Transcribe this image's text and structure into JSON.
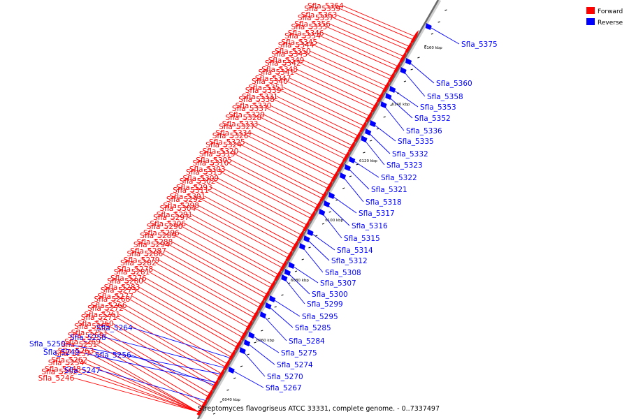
{
  "caption": "Streptomyces flavogriseus ATCC 33331, complete genome. - 0..7337497",
  "legend": [
    {
      "label": "Forward",
      "color": "#ff0000"
    },
    {
      "label": "Reverse",
      "color": "#0000ff"
    }
  ],
  "ticks": [
    "6040 kbp",
    "6060 kbp",
    "6080 kbp",
    "6100 kbp",
    "6120 kbp",
    "6140 kbp",
    "6160 kbp"
  ],
  "forward_labels": [
    "Sfla_5364",
    "Sfla_5359",
    "Sfla_5363",
    "Sfla_5357",
    "Sfla_5356",
    "Sfla_5355",
    "Sfla_5346",
    "Sfla_5354",
    "Sfla_5345",
    "Sfla_5344",
    "Sfla_5350",
    "Sfla_5343",
    "Sfla_5349",
    "Sfla_5342",
    "Sfla_5348",
    "Sfla_5341",
    "Sfla_5347",
    "Sfla_5340",
    "Sfla_5351",
    "Sfla_5339",
    "Sfla_5331",
    "Sfla_5338",
    "Sfla_5330",
    "Sfla_5337",
    "Sfla_5329",
    "Sfla_5328",
    "Sfla_5333",
    "Sfla_5327",
    "Sfla_5334",
    "Sfla_5326",
    "Sfla_5325",
    "Sfla_5324",
    "Sfla_5320",
    "Sfla_5319",
    "Sfla_5305",
    "Sfla_5310",
    "Sfla_5303",
    "Sfla_5313",
    "Sfla_5309",
    "Sfla_5302",
    "Sfla_5293",
    "Sfla_5311",
    "Sfla_5301",
    "Sfla_5292",
    "Sfla_5298",
    "Sfla_5304",
    "Sfla_5291",
    "Sfla_5297",
    "Sfla_5306",
    "Sfla_5290",
    "Sfla_5296",
    "Sfla_5289",
    "Sfla_5288",
    "Sfla_5294",
    "Sfla_5287",
    "Sfla_5286",
    "Sfla_5279",
    "Sfla_5282",
    "Sfla_5278",
    "Sfla_5281",
    "Sfla_5276",
    "Sfla_5280",
    "Sfla_5283",
    "Sfla_5273",
    "Sfla_5277",
    "Sfla_5268",
    "Sfla_5266",
    "Sfla_5272",
    "Sfla_5261",
    "Sfla_5271",
    "Sfla_5260",
    "Sfla_5265",
    "Sfla_5253",
    "Sfla_5259",
    "Sfla_5269",
    "Sfla_5251",
    "Sfla_5263",
    "Sfla_5257",
    "Sfla_5262",
    "Sfla_5254",
    "Sfla_5248",
    "Sfla_5252",
    "Sfla_5246"
  ],
  "reverse_labels_left": [
    "Sfla_5264",
    "Sfla_5258",
    "Sfla_5250",
    "Sfla_5256",
    "Sfla_5249",
    "Sfla_5247"
  ],
  "reverse_labels": [
    "Sfla_5375",
    "Sfla_5360",
    "Sfla_5358",
    "Sfla_5353",
    "Sfla_5352",
    "Sfla_5336",
    "Sfla_5335",
    "Sfla_5332",
    "Sfla_5323",
    "Sfla_5322",
    "Sfla_5321",
    "Sfla_5318",
    "Sfla_5317",
    "Sfla_5316",
    "Sfla_5315",
    "Sfla_5314",
    "Sfla_5312",
    "Sfla_5308",
    "Sfla_5307",
    "Sfla_5300",
    "Sfla_5299",
    "Sfla_5295",
    "Sfla_5285",
    "Sfla_5284",
    "Sfla_5275",
    "Sfla_5274",
    "Sfla_5270",
    "Sfla_5267"
  ]
}
